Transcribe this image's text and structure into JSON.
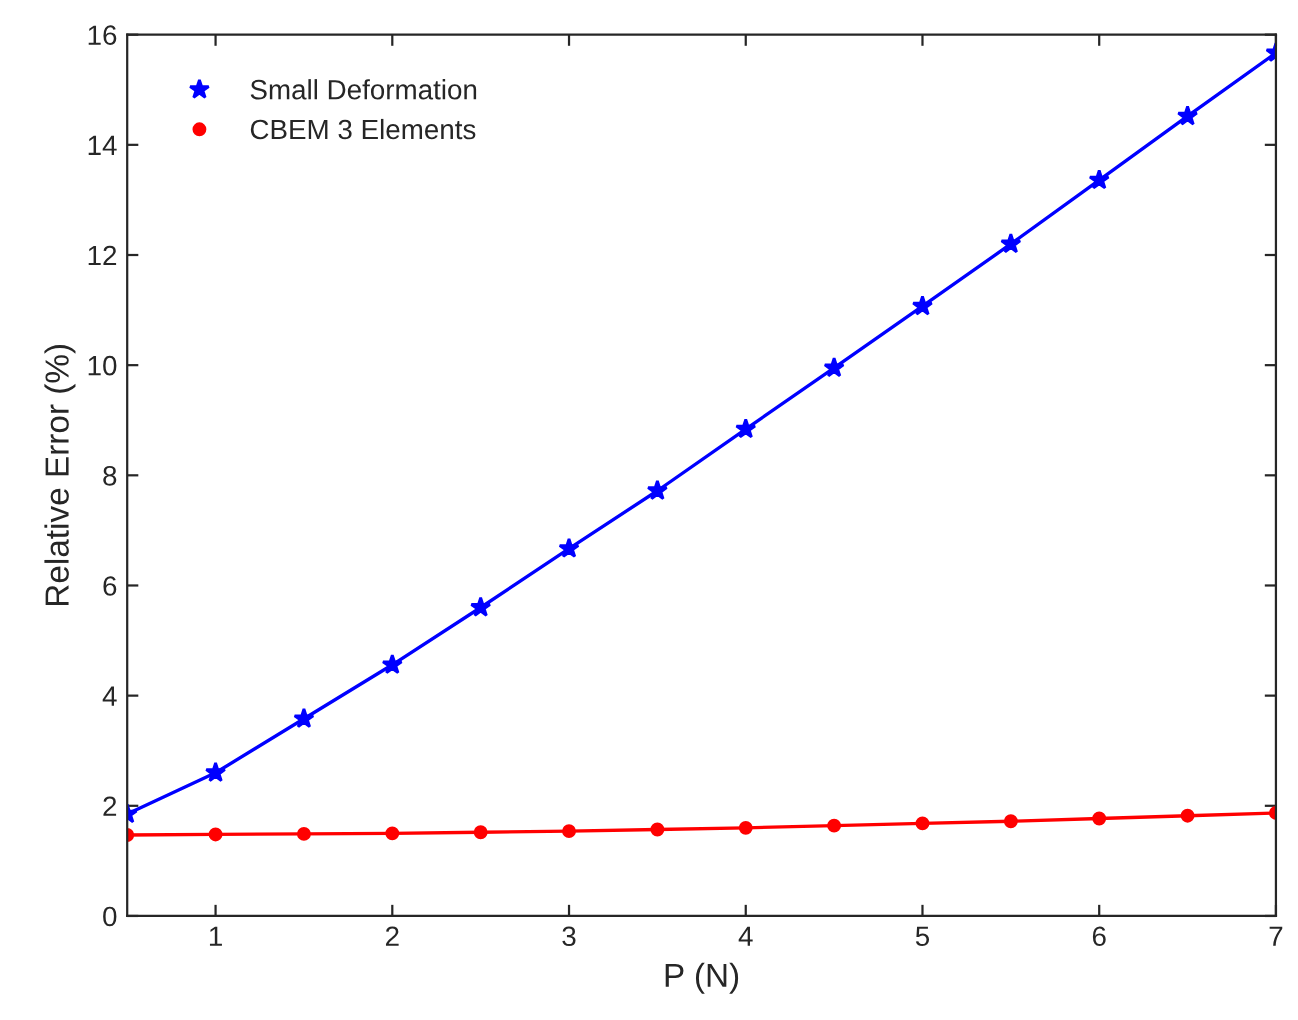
{
  "chart_data": {
    "type": "line",
    "xlabel": "P (N)",
    "ylabel": "Relative Error (%)",
    "x": [
      0.5,
      1,
      1.5,
      2,
      2.5,
      3,
      3.5,
      4,
      4.5,
      5,
      5.5,
      6,
      6.5,
      7
    ],
    "series": [
      {
        "name": "Small Deformation",
        "color": "#0000ff",
        "marker": "star",
        "values": [
          1.85,
          2.6,
          3.58,
          4.56,
          5.6,
          6.67,
          7.72,
          8.84,
          9.95,
          11.07,
          12.2,
          13.36,
          14.52,
          15.67
        ]
      },
      {
        "name": "CBEM 3 Elements",
        "color": "#ff0000",
        "marker": "circle",
        "values": [
          1.47,
          1.48,
          1.49,
          1.5,
          1.52,
          1.54,
          1.57,
          1.6,
          1.64,
          1.68,
          1.72,
          1.77,
          1.82,
          1.87
        ]
      }
    ],
    "xlim": [
      0.5,
      7
    ],
    "xticks": [
      1,
      2,
      3,
      4,
      5,
      6,
      7
    ],
    "ylim": [
      0,
      16
    ],
    "yticks": [
      0,
      2,
      4,
      6,
      8,
      10,
      12,
      14,
      16
    ],
    "grid": false,
    "legend": "top left",
    "line_style": "solid"
  }
}
